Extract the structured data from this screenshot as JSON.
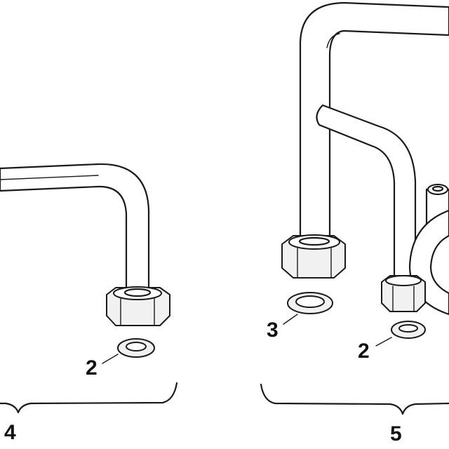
{
  "callouts": {
    "left_washer": "2",
    "left_assembly": "4",
    "right_large_washer": "3",
    "right_small_washer": "2",
    "right_assembly": "5"
  },
  "colors": {
    "line": "#1a1a1a",
    "shade": "#f1f1f1",
    "background": "#ffffff"
  }
}
